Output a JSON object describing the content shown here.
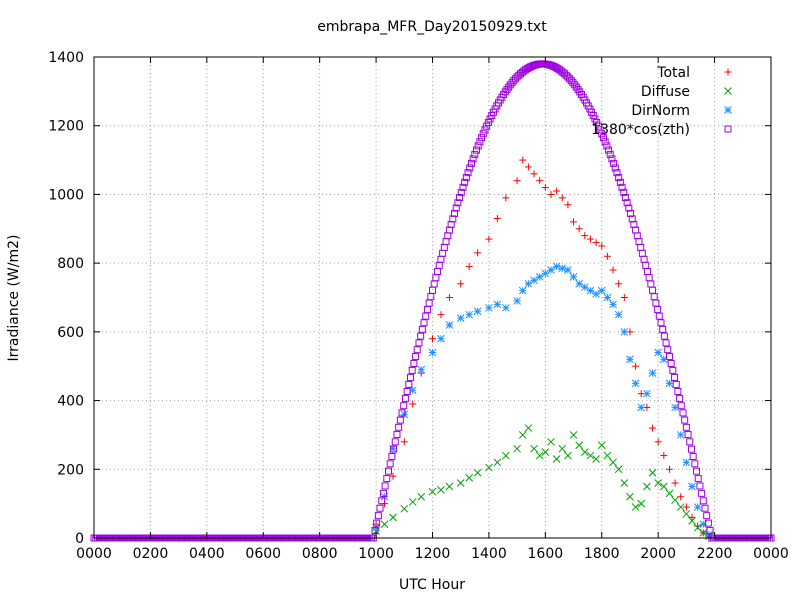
{
  "chart_data": {
    "type": "scatter",
    "title": "embrapa_MFR_Day20150929.txt",
    "xlabel": "UTC Hour",
    "ylabel": "Irradiance (W/m2)",
    "xlim": [
      0,
      24
    ],
    "ylim": [
      0,
      1400
    ],
    "x_ticks": [
      0,
      2,
      4,
      6,
      8,
      10,
      12,
      14,
      16,
      18,
      20,
      22,
      24
    ],
    "x_tick_labels": [
      "0000",
      "0200",
      "0400",
      "0600",
      "0800",
      "1000",
      "1200",
      "1400",
      "1600",
      "1800",
      "2000",
      "2200",
      "0000"
    ],
    "y_ticks": [
      0,
      200,
      400,
      600,
      800,
      1000,
      1200,
      1400
    ],
    "y_tick_labels": [
      "0",
      "200",
      "400",
      "600",
      "800",
      "1000",
      "1200",
      "1400"
    ],
    "grid": true,
    "legend_position": "top-right",
    "series": [
      {
        "name": "Total",
        "color": "#ff0000",
        "marker": "plus",
        "x": [
          10.0,
          10.3,
          10.6,
          11.0,
          11.3,
          11.6,
          12.0,
          12.3,
          12.6,
          13.0,
          13.3,
          13.6,
          14.0,
          14.3,
          14.6,
          15.0,
          15.2,
          15.4,
          15.6,
          15.8,
          16.0,
          16.2,
          16.4,
          16.6,
          16.8,
          17.0,
          17.2,
          17.4,
          17.6,
          17.8,
          18.0,
          18.2,
          18.4,
          18.6,
          18.8,
          19.0,
          19.2,
          19.4,
          19.6,
          19.8,
          20.0,
          20.2,
          20.4,
          20.6,
          20.8,
          21.0,
          21.2,
          21.4,
          21.6,
          21.8
        ],
        "y": [
          40,
          100,
          180,
          280,
          390,
          480,
          580,
          650,
          700,
          740,
          790,
          830,
          870,
          930,
          990,
          1040,
          1100,
          1080,
          1060,
          1040,
          1020,
          1000,
          1010,
          990,
          970,
          920,
          900,
          880,
          870,
          860,
          850,
          820,
          780,
          740,
          700,
          600,
          500,
          420,
          380,
          320,
          280,
          240,
          200,
          160,
          120,
          90,
          60,
          35,
          15,
          5
        ]
      },
      {
        "name": "Diffuse",
        "color": "#00a000",
        "marker": "cross",
        "x": [
          10.0,
          10.3,
          10.6,
          11.0,
          11.3,
          11.6,
          12.0,
          12.3,
          12.6,
          13.0,
          13.3,
          13.6,
          14.0,
          14.3,
          14.6,
          15.0,
          15.2,
          15.4,
          15.6,
          15.8,
          16.0,
          16.2,
          16.4,
          16.6,
          16.8,
          17.0,
          17.2,
          17.4,
          17.6,
          17.8,
          18.0,
          18.2,
          18.4,
          18.6,
          18.8,
          19.0,
          19.2,
          19.4,
          19.6,
          19.8,
          20.0,
          20.2,
          20.4,
          20.6,
          20.8,
          21.0,
          21.2,
          21.4,
          21.6,
          21.8
        ],
        "y": [
          20,
          40,
          60,
          85,
          105,
          120,
          135,
          140,
          150,
          160,
          175,
          190,
          205,
          220,
          240,
          260,
          300,
          320,
          260,
          240,
          250,
          280,
          230,
          260,
          240,
          300,
          270,
          250,
          240,
          230,
          270,
          240,
          220,
          200,
          160,
          120,
          90,
          100,
          150,
          190,
          160,
          150,
          130,
          110,
          90,
          70,
          50,
          30,
          15,
          5
        ]
      },
      {
        "name": "DirNorm",
        "color": "#1e90ff",
        "marker": "star",
        "x": [
          10.0,
          10.3,
          10.6,
          11.0,
          11.3,
          11.6,
          12.0,
          12.3,
          12.6,
          13.0,
          13.3,
          13.6,
          14.0,
          14.3,
          14.6,
          15.0,
          15.2,
          15.4,
          15.6,
          15.8,
          16.0,
          16.2,
          16.4,
          16.6,
          16.8,
          17.0,
          17.2,
          17.4,
          17.6,
          17.8,
          18.0,
          18.2,
          18.4,
          18.6,
          18.8,
          19.0,
          19.2,
          19.4,
          19.6,
          19.8,
          20.0,
          20.2,
          20.4,
          20.6,
          20.8,
          21.0,
          21.2,
          21.4,
          21.6,
          21.8
        ],
        "y": [
          30,
          120,
          260,
          360,
          430,
          490,
          540,
          580,
          620,
          640,
          650,
          660,
          670,
          680,
          670,
          690,
          720,
          740,
          750,
          760,
          770,
          780,
          790,
          785,
          780,
          760,
          740,
          730,
          720,
          710,
          720,
          700,
          680,
          650,
          600,
          520,
          450,
          380,
          420,
          480,
          540,
          520,
          450,
          380,
          300,
          220,
          150,
          90,
          40,
          10
        ]
      },
      {
        "name": "1380*cos(zth)",
        "color": "#a000e0",
        "marker": "square",
        "formula_peak": 1380,
        "formula_center_hour": 15.9,
        "formula_zero_hours": [
          9.9,
          21.9
        ],
        "baseline_value": 0
      }
    ]
  }
}
